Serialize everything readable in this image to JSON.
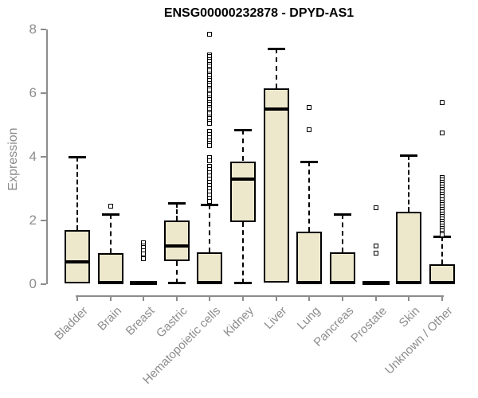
{
  "page": {
    "background": "#ffffff"
  },
  "chart_data": {
    "type": "boxplot",
    "title": "ENSG00000232878 - DPYD-AS1",
    "ylabel": "Expression",
    "xlabel": "",
    "ylim": [
      0,
      8
    ],
    "yticks": [
      0,
      2,
      4,
      6,
      8
    ],
    "grid": false,
    "legend": "none",
    "colors": {
      "box_fill": "#ede8cc",
      "box_border": "#000000",
      "axis": "#8c8c8c",
      "title": "#000000"
    },
    "categories": [
      "Bladder",
      "Brain",
      "Breast",
      "Gastric",
      "Hematopoietic cells",
      "Kidney",
      "Liver",
      "Lung",
      "Pancreas",
      "Prostate",
      "Skin",
      "Unknown / Other"
    ],
    "boxes": [
      {
        "name": "Bladder",
        "q1": 0.02,
        "median": 0.7,
        "q3": 1.68,
        "whisker_low": 0.02,
        "whisker_high": 4.0,
        "outliers": []
      },
      {
        "name": "Brain",
        "q1": 0.02,
        "median": 0.05,
        "q3": 0.97,
        "whisker_low": 0.02,
        "whisker_high": 2.2,
        "outliers": [
          2.45
        ]
      },
      {
        "name": "Breast",
        "q1": 0.0,
        "median": 0.02,
        "q3": 0.03,
        "whisker_low": 0.0,
        "whisker_high": 0.03,
        "outliers": [
          1.28,
          1.2,
          1.15,
          1.05,
          0.95,
          0.8
        ]
      },
      {
        "name": "Gastric",
        "q1": 0.72,
        "median": 1.18,
        "q3": 2.0,
        "whisker_low": 0.02,
        "whisker_high": 2.55,
        "outliers": []
      },
      {
        "name": "Hematopoietic cells",
        "q1": 0.02,
        "median": 0.05,
        "q3": 1.0,
        "whisker_low": 0.02,
        "whisker_high": 2.5,
        "outliers": [
          7.85,
          7.2,
          7.13,
          7.05,
          6.98,
          6.9,
          6.83,
          6.75,
          6.68,
          6.6,
          6.53,
          6.45,
          6.38,
          6.3,
          6.23,
          6.15,
          6.08,
          6.0,
          5.93,
          5.85,
          5.78,
          5.7,
          5.63,
          5.55,
          5.48,
          5.4,
          5.33,
          5.25,
          5.18,
          5.1,
          5.03,
          4.78,
          4.68,
          4.6,
          4.5,
          4.42,
          4.33,
          3.97,
          3.87,
          3.7,
          3.6,
          3.5,
          3.4,
          3.3,
          3.2,
          3.1,
          3.0,
          2.9,
          2.8,
          2.7,
          2.6
        ]
      },
      {
        "name": "Kidney",
        "q1": 1.95,
        "median": 3.3,
        "q3": 3.85,
        "whisker_low": 0.02,
        "whisker_high": 4.83,
        "outliers": []
      },
      {
        "name": "Liver",
        "q1": 0.03,
        "median": 5.5,
        "q3": 6.15,
        "whisker_low": 0.03,
        "whisker_high": 7.4,
        "outliers": []
      },
      {
        "name": "Lung",
        "q1": 0.02,
        "median": 0.05,
        "q3": 1.63,
        "whisker_low": 0.02,
        "whisker_high": 3.85,
        "outliers": [
          5.55,
          4.85
        ]
      },
      {
        "name": "Pancreas",
        "q1": 0.02,
        "median": 0.05,
        "q3": 1.0,
        "whisker_low": 0.02,
        "whisker_high": 2.2,
        "outliers": []
      },
      {
        "name": "Prostate",
        "q1": 0.0,
        "median": 0.02,
        "q3": 0.03,
        "whisker_low": 0.0,
        "whisker_high": 0.03,
        "outliers": [
          2.4,
          1.2,
          0.97
        ]
      },
      {
        "name": "Skin",
        "q1": 0.02,
        "median": 0.05,
        "q3": 2.27,
        "whisker_low": 0.02,
        "whisker_high": 4.05,
        "outliers": []
      },
      {
        "name": "Unknown / Other",
        "q1": 0.02,
        "median": 0.05,
        "q3": 0.62,
        "whisker_low": 0.02,
        "whisker_high": 1.5,
        "outliers": [
          5.7,
          4.75,
          3.35,
          3.27,
          3.2,
          3.12,
          3.05,
          2.97,
          2.9,
          2.82,
          2.75,
          2.65,
          2.57,
          2.5,
          2.42,
          2.35,
          2.27,
          2.2,
          2.12,
          2.05,
          1.97,
          1.9,
          1.82,
          1.75,
          1.67,
          1.6,
          1.55
        ]
      }
    ]
  }
}
